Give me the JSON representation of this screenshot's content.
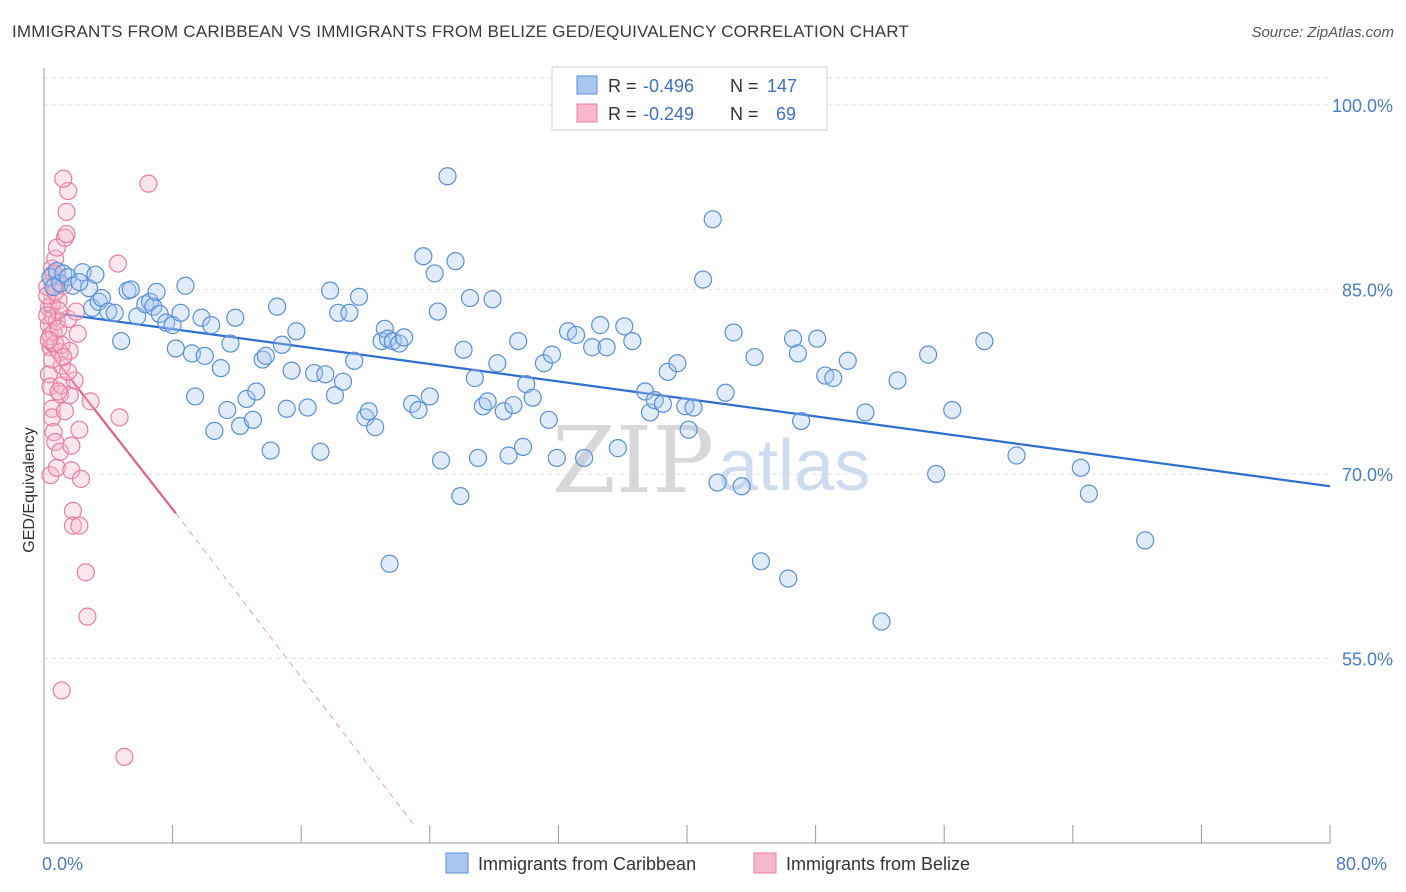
{
  "header": {
    "title": "IMMIGRANTS FROM CARIBBEAN VS IMMIGRANTS FROM BELIZE GED/EQUIVALENCY CORRELATION CHART",
    "source": "Source: ZipAtlas.com"
  },
  "watermark": {
    "zip": "ZIP",
    "atlas": "atlas"
  },
  "legend_box": {
    "rows": [
      {
        "r_label": "R = ",
        "r_value": "-0.496",
        "n_label": "N = ",
        "n_value": "147"
      },
      {
        "r_label": "R = ",
        "r_value": "-0.249",
        "n_label": "N = ",
        "n_value": "69"
      }
    ]
  },
  "colors": {
    "blue_fill": "#a8c8f0",
    "blue_stroke": "#5b8fd9",
    "blue_line": "#2f6fd0",
    "pink_fill": "#f7b8cc",
    "pink_stroke": "#e87fa2",
    "pink_line": "#e0608a",
    "grid": "#e0e0e0",
    "tick_text": "#4a7cc9"
  },
  "chart_data": {
    "type": "scatter",
    "title": "IMMIGRANTS FROM CARIBBEAN VS IMMIGRANTS FROM BELIZE GED/EQUIVALENCY CORRELATION CHART",
    "xlabel": "",
    "ylabel": "GED/Equivalency",
    "xlim": [
      0,
      80
    ],
    "ylim": [
      40,
      103
    ],
    "x_tick_labels": {
      "left": "0.0%",
      "right": "80.0%"
    },
    "y_ticks": [
      {
        "value": 100,
        "label": "100.0%"
      },
      {
        "value": 85,
        "label": "85.0%"
      },
      {
        "value": 70,
        "label": "70.0%"
      },
      {
        "value": 55,
        "label": "55.0%"
      }
    ],
    "grid": true,
    "legend_position": "bottom",
    "series": [
      {
        "name": "Immigrants from Caribbean",
        "color": "#5b8fd9",
        "trend": {
          "x": [
            0,
            80
          ],
          "y": [
            83.2,
            69.0
          ]
        },
        "points": [
          [
            0.4,
            86
          ],
          [
            0.6,
            85.2
          ],
          [
            0.8,
            86.5
          ],
          [
            1,
            85.5
          ],
          [
            1.2,
            86.3
          ],
          [
            1.5,
            86
          ],
          [
            1.8,
            85.3
          ],
          [
            2.4,
            86.4
          ],
          [
            2.8,
            85.1
          ],
          [
            3,
            83.5
          ],
          [
            3.4,
            84
          ],
          [
            3.6,
            84.3
          ],
          [
            4,
            83.2
          ],
          [
            4.4,
            83.1
          ],
          [
            4.8,
            80.8
          ],
          [
            5.2,
            84.9
          ],
          [
            5.4,
            85
          ],
          [
            5.8,
            82.8
          ],
          [
            6.3,
            83.8
          ],
          [
            6.6,
            84
          ],
          [
            6.8,
            83.6
          ],
          [
            7,
            84.8
          ],
          [
            7.2,
            83
          ],
          [
            7.6,
            82.3
          ],
          [
            8,
            82.1
          ],
          [
            8.2,
            80.2
          ],
          [
            8.5,
            83.1
          ],
          [
            8.8,
            85.3
          ],
          [
            9.2,
            79.8
          ],
          [
            9.4,
            76.3
          ],
          [
            9.8,
            82.7
          ],
          [
            10,
            79.6
          ],
          [
            10.4,
            82.1
          ],
          [
            10.6,
            73.5
          ],
          [
            11,
            78.6
          ],
          [
            11.4,
            75.2
          ],
          [
            11.6,
            80.6
          ],
          [
            11.9,
            82.7
          ],
          [
            12.2,
            73.9
          ],
          [
            12.6,
            76.1
          ],
          [
            13,
            74.4
          ],
          [
            13.2,
            76.7
          ],
          [
            13.6,
            79.3
          ],
          [
            13.8,
            79.6
          ],
          [
            14.1,
            71.9
          ],
          [
            14.5,
            83.6
          ],
          [
            14.8,
            80.5
          ],
          [
            15.1,
            75.3
          ],
          [
            15.4,
            78.4
          ],
          [
            15.7,
            81.6
          ],
          [
            16.4,
            75.4
          ],
          [
            16.8,
            78.2
          ],
          [
            17.2,
            71.8
          ],
          [
            17.5,
            78.1
          ],
          [
            17.8,
            84.9
          ],
          [
            18.1,
            76.4
          ],
          [
            18.3,
            83.1
          ],
          [
            18.6,
            77.5
          ],
          [
            19,
            83.1
          ],
          [
            19.3,
            79.2
          ],
          [
            19.6,
            84.4
          ],
          [
            20,
            74.6
          ],
          [
            20.2,
            75.1
          ],
          [
            20.6,
            73.8
          ],
          [
            21,
            80.8
          ],
          [
            21.2,
            81.8
          ],
          [
            21.4,
            81
          ],
          [
            21.7,
            80.8
          ],
          [
            22.1,
            80.6
          ],
          [
            22.4,
            81.1
          ],
          [
            22.9,
            75.7
          ],
          [
            23.3,
            75.2
          ],
          [
            23.6,
            87.7
          ],
          [
            24,
            76.3
          ],
          [
            24.3,
            86.3
          ],
          [
            24.5,
            83.2
          ],
          [
            24.7,
            71.1
          ],
          [
            25.1,
            94.2
          ],
          [
            25.6,
            87.3
          ],
          [
            25.9,
            68.2
          ],
          [
            26.1,
            80.1
          ],
          [
            26.5,
            84.3
          ],
          [
            26.8,
            77.8
          ],
          [
            27,
            71.3
          ],
          [
            27.3,
            75.5
          ],
          [
            27.6,
            75.9
          ],
          [
            27.9,
            84.2
          ],
          [
            28.2,
            79
          ],
          [
            28.6,
            75.1
          ],
          [
            28.9,
            71.5
          ],
          [
            29.2,
            75.6
          ],
          [
            29.5,
            80.8
          ],
          [
            29.8,
            72.2
          ],
          [
            30,
            77.3
          ],
          [
            30.4,
            76.2
          ],
          [
            31.1,
            79
          ],
          [
            31.4,
            74.4
          ],
          [
            31.6,
            79.7
          ],
          [
            31.9,
            71.3
          ],
          [
            32.6,
            81.6
          ],
          [
            33.1,
            81.3
          ],
          [
            33.6,
            71.3
          ],
          [
            34.1,
            80.3
          ],
          [
            34.6,
            82.1
          ],
          [
            35,
            80.3
          ],
          [
            35.7,
            72.1
          ],
          [
            36.1,
            82
          ],
          [
            36.6,
            80.8
          ],
          [
            37.4,
            76.7
          ],
          [
            37.7,
            75
          ],
          [
            38,
            76
          ],
          [
            38.5,
            75.7
          ],
          [
            38.8,
            78.3
          ],
          [
            39.4,
            79
          ],
          [
            39.9,
            75.5
          ],
          [
            40.1,
            73.6
          ],
          [
            40.4,
            75.4
          ],
          [
            41,
            85.8
          ],
          [
            41.6,
            90.7
          ],
          [
            41.9,
            69.3
          ],
          [
            42.4,
            76.6
          ],
          [
            42.9,
            81.5
          ],
          [
            43.4,
            69
          ],
          [
            44.2,
            79.5
          ],
          [
            44.6,
            62.9
          ],
          [
            46.3,
            61.5
          ],
          [
            46.6,
            81
          ],
          [
            46.9,
            79.8
          ],
          [
            47.1,
            74.3
          ],
          [
            48.1,
            81
          ],
          [
            48.6,
            78
          ],
          [
            49.1,
            77.8
          ],
          [
            50,
            79.2
          ],
          [
            51.1,
            75
          ],
          [
            52.1,
            58
          ],
          [
            53.1,
            77.6
          ],
          [
            55,
            79.7
          ],
          [
            55.5,
            70
          ],
          [
            56.5,
            75.2
          ],
          [
            58.5,
            80.8
          ],
          [
            60.5,
            71.5
          ],
          [
            64.5,
            70.5
          ],
          [
            65,
            68.4
          ],
          [
            68.5,
            64.6
          ],
          [
            21.5,
            62.7
          ],
          [
            2.2,
            85.6
          ],
          [
            3.2,
            86.2
          ]
        ]
      },
      {
        "name": "Immigrants from Belize",
        "color": "#e87fa2",
        "trend": {
          "x": [
            0,
            8.2
          ],
          "y": [
            80.5,
            66.8
          ]
        },
        "trend_dashed": {
          "x": [
            8.2,
            23
          ],
          "y": [
            66.8,
            41.5
          ]
        },
        "points": [
          [
            0.2,
            85.2
          ],
          [
            0.3,
            83.5
          ],
          [
            0.3,
            82.1
          ],
          [
            0.4,
            81.2
          ],
          [
            0.4,
            80.3
          ],
          [
            0.5,
            86.7
          ],
          [
            0.5,
            83.8
          ],
          [
            0.6,
            82.7
          ],
          [
            0.6,
            81.5
          ],
          [
            0.7,
            87.5
          ],
          [
            0.7,
            85.4
          ],
          [
            0.7,
            80.6
          ],
          [
            0.8,
            88.4
          ],
          [
            0.8,
            86.1
          ],
          [
            0.8,
            82.4
          ],
          [
            0.9,
            84.1
          ],
          [
            0.9,
            81.8
          ],
          [
            1,
            79.9
          ],
          [
            0.3,
            78.1
          ],
          [
            0.4,
            77.1
          ],
          [
            0.5,
            75.3
          ],
          [
            0.5,
            74.6
          ],
          [
            0.6,
            73.4
          ],
          [
            0.7,
            72.6
          ],
          [
            0.4,
            69.9
          ],
          [
            0.8,
            70.5
          ],
          [
            1,
            71.8
          ],
          [
            1,
            76.5
          ],
          [
            1.1,
            77.2
          ],
          [
            1.1,
            78.8
          ],
          [
            1.1,
            80.5
          ],
          [
            1.2,
            85.3
          ],
          [
            1.3,
            89.2
          ],
          [
            1.4,
            89.5
          ],
          [
            1.4,
            91.3
          ],
          [
            1.5,
            93
          ],
          [
            1.5,
            82.6
          ],
          [
            1.6,
            80
          ],
          [
            1.6,
            76.4
          ],
          [
            1.7,
            72.3
          ],
          [
            1.7,
            70.3
          ],
          [
            1.8,
            67
          ],
          [
            1.8,
            65.8
          ],
          [
            1.9,
            77.6
          ],
          [
            2.1,
            81.4
          ],
          [
            2.2,
            65.8
          ],
          [
            2.2,
            73.6
          ],
          [
            2.3,
            69.6
          ],
          [
            2.6,
            62
          ],
          [
            2.7,
            58.4
          ],
          [
            2.9,
            75.9
          ],
          [
            4.7,
            74.6
          ],
          [
            4.6,
            87.1
          ],
          [
            6.5,
            93.6
          ],
          [
            1.2,
            94
          ],
          [
            1.1,
            52.4
          ],
          [
            5,
            47
          ],
          [
            0.6,
            86.3
          ],
          [
            0.9,
            83.3
          ],
          [
            1.2,
            79.5
          ],
          [
            0.3,
            80.9
          ],
          [
            0.2,
            84.5
          ],
          [
            0.5,
            79.3
          ],
          [
            1.3,
            75.1
          ],
          [
            2,
            83.2
          ],
          [
            0.9,
            76.7
          ],
          [
            0.2,
            82.9
          ],
          [
            1.5,
            78.3
          ],
          [
            0.7,
            84.8
          ]
        ]
      }
    ]
  }
}
